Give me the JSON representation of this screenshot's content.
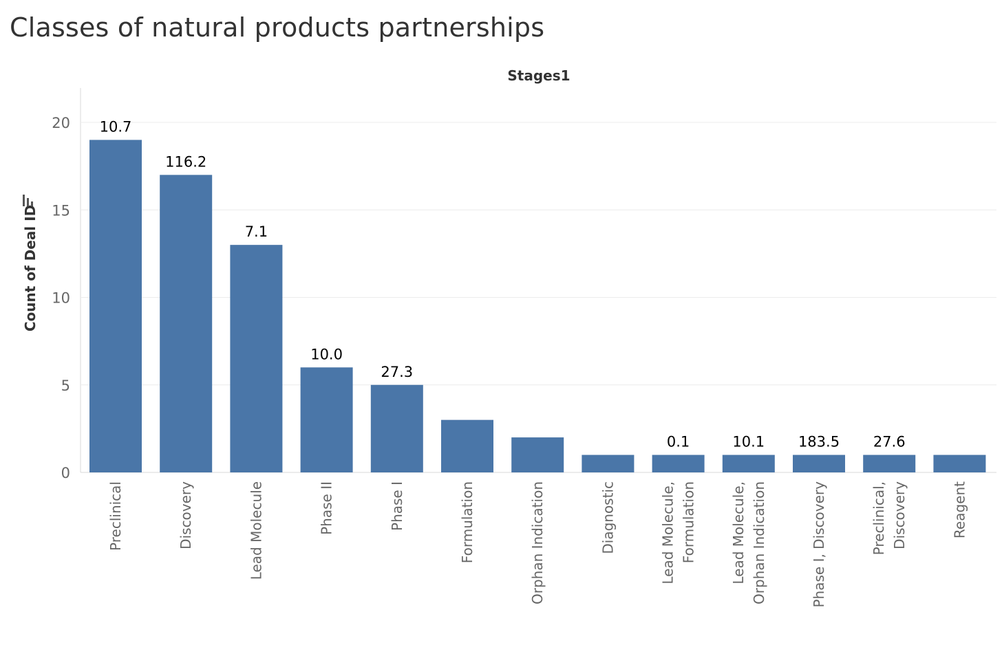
{
  "chart_data": {
    "type": "bar",
    "title": "Classes of natural products partnerships",
    "xlabel": "Stages1",
    "ylabel": "Count of Deal ID",
    "ylim": [
      0,
      20
    ],
    "yticks": [
      0,
      5,
      10,
      15,
      20
    ],
    "grid": true,
    "bar_color": "#4a76a8",
    "sort_icon": "sort-descending-icon",
    "categories": [
      [
        "Preclinical"
      ],
      [
        "Discovery"
      ],
      [
        "Lead Molecule"
      ],
      [
        "Phase II"
      ],
      [
        "Phase I"
      ],
      [
        "Formulation"
      ],
      [
        "Orphan Indication"
      ],
      [
        "Diagnostic"
      ],
      [
        "Lead Molecule,",
        "Formulation"
      ],
      [
        "Lead Molecule,",
        "Orphan Indication"
      ],
      [
        "Phase I, Discovery"
      ],
      [
        "Preclinical,",
        "Discovery"
      ],
      [
        "Reagent"
      ]
    ],
    "values": [
      19,
      17,
      13,
      6,
      5,
      3,
      2,
      1,
      1,
      1,
      1,
      1,
      1
    ],
    "data_labels": [
      "10.7",
      "116.2",
      "7.1",
      "10.0",
      "27.3",
      "",
      "",
      "",
      "0.1",
      "10.1",
      "183.5",
      "27.6",
      ""
    ]
  }
}
